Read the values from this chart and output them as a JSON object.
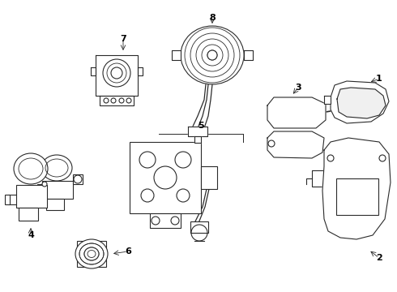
{
  "bg_color": "#ffffff",
  "line_color": "#2a2a2a",
  "label_color": "#000000",
  "fig_width": 4.9,
  "fig_height": 3.6,
  "dpi": 100,
  "image_b64": ""
}
